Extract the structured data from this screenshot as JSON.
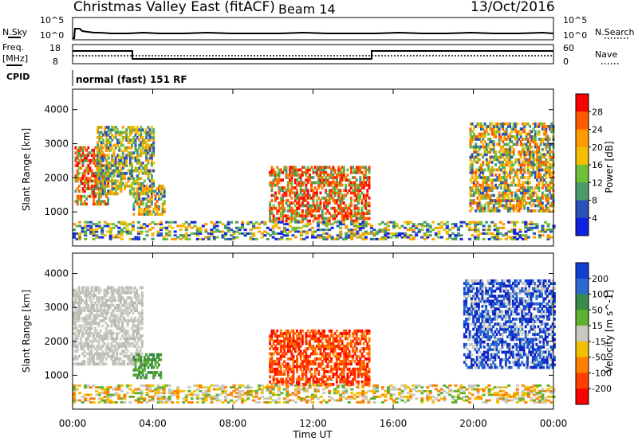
{
  "header": {
    "station": "Christmas Valley East (fitACF)",
    "beam": "Beam 14",
    "date": "13/Oct/2016"
  },
  "noise_panel": {
    "left_label": "N.Sky",
    "right_label": "N.Search",
    "left_ticks": [
      "10^5",
      "10^0"
    ],
    "right_ticks": [
      "10^5",
      "10^0"
    ]
  },
  "freq_panel": {
    "left_label": "Freq.",
    "unit": "[MHz]",
    "right_label": "Nave",
    "left_ticks": [
      "18",
      "8"
    ],
    "right_ticks": [
      "60",
      "0"
    ]
  },
  "cpid_panel": {
    "label": "CPID",
    "mode_text": "normal (fast) 151 RF"
  },
  "time_axis": {
    "label": "Time UT",
    "ticks": [
      "00:00",
      "04:00",
      "08:00",
      "12:00",
      "16:00",
      "20:00",
      "00:00"
    ]
  },
  "chart_data": [
    {
      "type": "heatmap",
      "title": "",
      "xlabel": "Time UT",
      "ylabel": "Slant Range [km]",
      "x_range_hours": [
        0,
        24
      ],
      "y_ticks": [
        1000,
        2000,
        3000,
        4000
      ],
      "colorbar": {
        "label": "Power [dB]",
        "ticks": [
          "28",
          "24",
          "20",
          "16",
          "12",
          "8",
          "4"
        ],
        "colors": [
          "#ff0000",
          "#ff5a00",
          "#ff9a00",
          "#f2c000",
          "#6fbf3a",
          "#4a9a6a",
          "#2a52b8",
          "#1020e0"
        ]
      },
      "regions": [
        {
          "t0": 0.1,
          "t1": 1.8,
          "r0": 1200,
          "r1": 2900,
          "level": "high"
        },
        {
          "t0": 1.2,
          "t1": 4.0,
          "r0": 1500,
          "r1": 3500,
          "level": "mid"
        },
        {
          "t0": 3.0,
          "t1": 4.6,
          "r0": 900,
          "r1": 1800,
          "level": "mixed"
        },
        {
          "t0": 9.8,
          "t1": 14.8,
          "r0": 700,
          "r1": 2300,
          "level": "high"
        },
        {
          "t0": 19.8,
          "t1": 24.0,
          "r0": 1000,
          "r1": 3600,
          "level": "mixed"
        },
        {
          "t0": 0.0,
          "t1": 24.0,
          "r0": 180,
          "r1": 700,
          "level": "low"
        }
      ]
    },
    {
      "type": "heatmap",
      "title": "",
      "xlabel": "Time UT",
      "ylabel": "Slant Range [km]",
      "x_range_hours": [
        0,
        24
      ],
      "y_ticks": [
        1000,
        2000,
        3000,
        4000
      ],
      "colorbar": {
        "label": "Velocity [m s^-1]",
        "ticks": [
          "200",
          "100",
          "50",
          "15",
          "-15",
          "-50",
          "-100",
          "-200"
        ],
        "colors": [
          "#1040d0",
          "#2a6ad0",
          "#3a8a4a",
          "#60b030",
          "#c8c8c0",
          "#f0c000",
          "#ff8000",
          "#ff4000",
          "#ff0000"
        ]
      },
      "regions": [
        {
          "t0": 0.0,
          "t1": 3.5,
          "r0": 1300,
          "r1": 3600,
          "level": "grey"
        },
        {
          "t0": 3.0,
          "t1": 4.4,
          "r0": 900,
          "r1": 1600,
          "level": "green"
        },
        {
          "t0": 9.8,
          "t1": 14.8,
          "r0": 700,
          "r1": 2300,
          "level": "red"
        },
        {
          "t0": 19.5,
          "t1": 24.0,
          "r0": 1200,
          "r1": 3800,
          "level": "blue"
        },
        {
          "t0": 0.0,
          "t1": 24.0,
          "r0": 180,
          "r1": 700,
          "level": "low"
        }
      ]
    }
  ]
}
